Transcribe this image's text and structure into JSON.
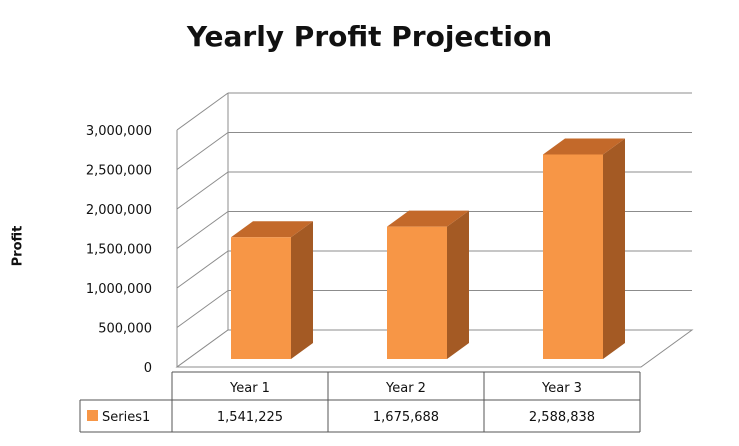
{
  "chart_data": {
    "type": "bar",
    "title": "Yearly Profit Projection",
    "xlabel": "",
    "ylabel": "Profit",
    "ylim": [
      0,
      3000000
    ],
    "y_ticks": [
      0,
      500000,
      1000000,
      1500000,
      2000000,
      2500000,
      3000000
    ],
    "y_tick_labels": [
      "0",
      "500,000",
      "1,000,000",
      "1,500,000",
      "2,000,000",
      "2,500,000",
      "3,000,000"
    ],
    "categories": [
      "Year 1",
      "Year 2",
      "Year 3"
    ],
    "series": [
      {
        "name": "Series1",
        "values": [
          1541225,
          1675688,
          2588838
        ],
        "value_labels": [
          "1,541,225",
          "1,675,688",
          "2,588,838"
        ]
      }
    ],
    "grid": true,
    "legend": "data-table",
    "style": "3d-column",
    "colors": {
      "bar_front": "#F79646",
      "bar_top": "#C3692A",
      "bar_side": "#A45A24",
      "legend_key": "#F79646",
      "gridline": "#8C8C8C"
    }
  }
}
